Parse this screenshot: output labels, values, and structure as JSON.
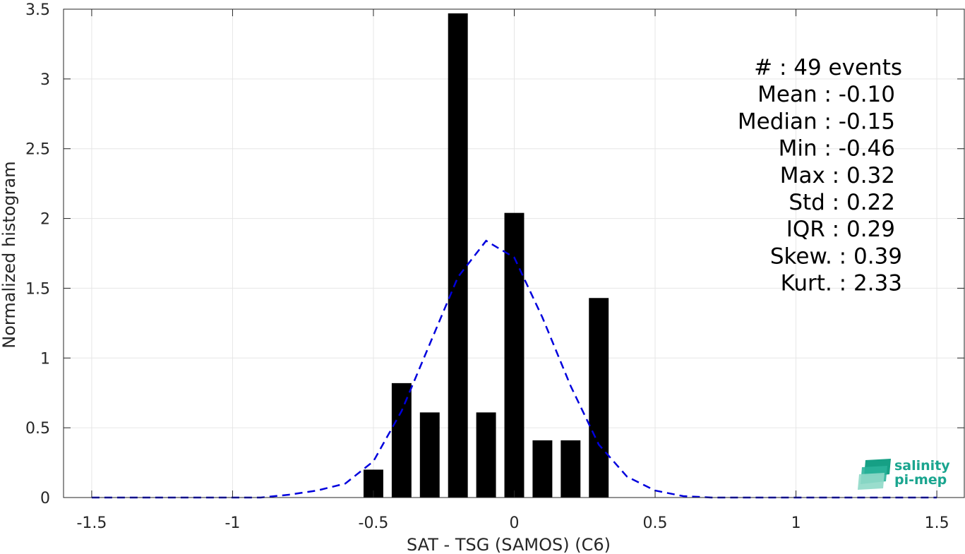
{
  "chart_data": {
    "type": "bar",
    "xlabel": "SAT - TSG (SAMOS) (C6)",
    "ylabel": "Normalized histogram",
    "xlim": [
      -1.6,
      1.6
    ],
    "ylim": [
      0,
      3.5
    ],
    "grid": true,
    "xticks": [
      -1.5,
      -1,
      -0.5,
      0,
      0.5,
      1,
      1.5
    ],
    "xtick_labels": [
      "-1.5",
      "-1",
      "-0.5",
      "0",
      "0.5",
      "1",
      "1.5"
    ],
    "yticks": [
      0,
      0.5,
      1,
      1.5,
      2,
      2.5,
      3,
      3.5
    ],
    "ytick_labels": [
      "0",
      "0.5",
      "1",
      "1.5",
      "2",
      "2.5",
      "3",
      "3.5"
    ],
    "bar_width": 0.07,
    "bars": {
      "x": [
        -0.5,
        -0.4,
        -0.3,
        -0.2,
        -0.1,
        0.0,
        0.1,
        0.2,
        0.3
      ],
      "y": [
        0.2,
        0.82,
        0.61,
        3.47,
        0.61,
        2.04,
        0.41,
        0.41,
        1.43
      ],
      "color": "#000000"
    },
    "fit_curve": {
      "style": "dashed",
      "color": "#0000dd",
      "x": [
        -1.5,
        -1.4,
        -1.3,
        -1.2,
        -1.1,
        -1.0,
        -0.9,
        -0.8,
        -0.7,
        -0.6,
        -0.5,
        -0.4,
        -0.3,
        -0.2,
        -0.1,
        0.0,
        0.1,
        0.2,
        0.3,
        0.4,
        0.5,
        0.6,
        0.7,
        0.8,
        0.9,
        1.0,
        1.1,
        1.2,
        1.3,
        1.4,
        1.5
      ],
      "y": [
        0.0,
        0.0,
        0.0,
        0.0,
        0.0,
        0.0,
        0.0,
        0.02,
        0.05,
        0.1,
        0.26,
        0.62,
        1.1,
        1.58,
        1.84,
        1.72,
        1.29,
        0.8,
        0.38,
        0.15,
        0.05,
        0.01,
        0.0,
        0.0,
        0.0,
        0.0,
        0.0,
        0.0,
        0.0,
        0.0,
        0.0
      ]
    },
    "stats": [
      {
        "label": "#  ",
        "sep": " : ",
        "value": "49 events"
      },
      {
        "label": "Mean",
        "sep": " : ",
        "value": "-0.10"
      },
      {
        "label": "Median",
        "sep": " : ",
        "value": "-0.15"
      },
      {
        "label": "Min",
        "sep": " : ",
        "value": "-0.46"
      },
      {
        "label": "Max",
        "sep": " : ",
        "value": "0.32"
      },
      {
        "label": "Std",
        "sep": " : ",
        "value": "0.22"
      },
      {
        "label": "IQR",
        "sep": " : ",
        "value": "0.29"
      },
      {
        "label": "Skew.",
        "sep": " : ",
        "value": "0.39"
      },
      {
        "label": "Kurt.",
        "sep": " : ",
        "value": "2.33"
      }
    ]
  },
  "logo": {
    "line1": "salinity",
    "line2": "pi-mep",
    "color": "#1aa58f"
  }
}
